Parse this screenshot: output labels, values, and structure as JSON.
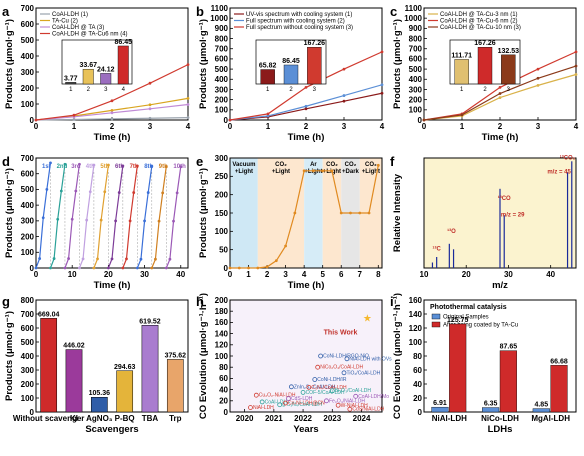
{
  "panels": {
    "a": "a",
    "b": "b",
    "c": "c",
    "d": "d",
    "e": "e",
    "f": "f",
    "g": "g",
    "h": "h",
    "i": "i"
  },
  "chart_data": [
    {
      "id": "a",
      "type": "line",
      "xlabel": "Time (h)",
      "ylabel": "Products (μmol·g⁻¹)",
      "xlim": [
        0,
        4
      ],
      "ylim": [
        0,
        700
      ],
      "xticks": [
        0,
        1,
        2,
        3,
        4
      ],
      "yticks": [
        0,
        100,
        200,
        300,
        400,
        500,
        600,
        700
      ],
      "legend_position": "top-left",
      "series": [
        {
          "name": "CoAl-LDH (1)",
          "color": "#9aa3ad",
          "x": [
            0,
            1,
            2,
            3,
            4
          ],
          "y": [
            0,
            3,
            7,
            11,
            15
          ]
        },
        {
          "name": "TA-Cu (2)",
          "color": "#d9a520",
          "x": [
            0,
            1,
            2,
            3,
            4
          ],
          "y": [
            0,
            25,
            60,
            95,
            135
          ]
        },
        {
          "name": "CoAl-LDH @ TA (3)",
          "color": "#c08bd6",
          "x": [
            0,
            1,
            2,
            3,
            4
          ],
          "y": [
            0,
            20,
            45,
            70,
            97
          ]
        },
        {
          "name": "CoAl-LDH @ TA-Cu6 nm (4)",
          "color": "#d03a2f",
          "x": [
            0,
            1,
            2,
            3,
            4
          ],
          "y": [
            0,
            30,
            120,
            230,
            346
          ]
        }
      ],
      "inset": {
        "type": "bar",
        "categories": [
          "1",
          "2",
          "3",
          "4"
        ],
        "values": [
          3.77,
          33.67,
          24.12,
          86.45
        ],
        "labels": [
          "3.77",
          "33.67",
          "24.12",
          "86.45"
        ],
        "colors": [
          "#4a4a4a",
          "#e8c25a",
          "#9b6dbf",
          "#cf2a2a"
        ],
        "ylim": [
          0,
          100
        ]
      }
    },
    {
      "id": "b",
      "type": "line",
      "xlabel": "Time (h)",
      "ylabel": "Products (μmol·g⁻¹)",
      "xlim": [
        0,
        4
      ],
      "ylim": [
        0,
        1100
      ],
      "xticks": [
        0,
        1,
        2,
        3,
        4
      ],
      "yticks": [
        0,
        100,
        200,
        300,
        400,
        500,
        600,
        700,
        800,
        900,
        1000,
        1100
      ],
      "legend_position": "top-left",
      "series": [
        {
          "name": "UV-vis spectrum with cooling system (1)",
          "color": "#8b1a1a",
          "x": [
            0,
            1,
            2,
            3,
            4
          ],
          "y": [
            0,
            30,
            110,
            185,
            263
          ]
        },
        {
          "name": "Full spectrum with cooling system (2)",
          "color": "#5b8fd6",
          "x": [
            0,
            1,
            2,
            3,
            4
          ],
          "y": [
            0,
            40,
            135,
            240,
            346
          ]
        },
        {
          "name": "Full spectrum without cooling system (3)",
          "color": "#d03a2f",
          "x": [
            0,
            1,
            2,
            3,
            4
          ],
          "y": [
            0,
            60,
            320,
            500,
            669
          ]
        }
      ],
      "inset": {
        "type": "bar",
        "categories": [
          "1",
          "2",
          "3"
        ],
        "values": [
          65.82,
          86.45,
          167.26
        ],
        "labels": [
          "65.82",
          "86.45",
          "167.26"
        ],
        "colors": [
          "#8b1a1a",
          "#5b8fd6",
          "#d03a2f"
        ],
        "ylim": [
          0,
          200
        ]
      }
    },
    {
      "id": "c",
      "type": "line",
      "xlabel": "Time (h)",
      "ylabel": "Products (μmol·g⁻¹)",
      "xlim": [
        0,
        4
      ],
      "ylim": [
        0,
        1100
      ],
      "xticks": [
        0,
        1,
        2,
        3,
        4
      ],
      "yticks": [
        0,
        100,
        200,
        300,
        400,
        500,
        600,
        700,
        800,
        900,
        1000,
        1100
      ],
      "legend_position": "top-left",
      "series": [
        {
          "name": "CoAl-LDH @ TA-Cu-3 nm (1)",
          "color": "#d9b24a",
          "x": [
            0,
            1,
            2,
            3,
            4
          ],
          "y": [
            0,
            40,
            220,
            340,
            447
          ]
        },
        {
          "name": "CoAl-LDH @ TA-Cu-6 nm (2)",
          "color": "#d03a2f",
          "x": [
            0,
            1,
            2,
            3,
            4
          ],
          "y": [
            0,
            60,
            320,
            500,
            669
          ]
        },
        {
          "name": "CoAl-LDH @ TA-Cu-10 nm (3)",
          "color": "#8b3a1a",
          "x": [
            0,
            1,
            2,
            3,
            4
          ],
          "y": [
            0,
            50,
            260,
            410,
            530
          ]
        }
      ],
      "inset": {
        "type": "bar",
        "categories": [
          "1",
          "2",
          "3"
        ],
        "values": [
          111.71,
          167.26,
          132.53
        ],
        "labels": [
          "111.71",
          "167.26",
          "132.53"
        ],
        "colors": [
          "#e0c070",
          "#cf2a2a",
          "#8b3a1a"
        ],
        "ylim": [
          0,
          200
        ]
      }
    },
    {
      "id": "d",
      "type": "line",
      "xlabel": "Time (h)",
      "ylabel": "Products (μmol·g⁻¹)",
      "xlim": [
        0,
        42
      ],
      "ylim": [
        0,
        700
      ],
      "xticks": [
        0,
        10,
        20,
        30,
        40
      ],
      "yticks": [
        0,
        100,
        200,
        300,
        400,
        500,
        600,
        700
      ],
      "cycle_labels": [
        {
          "text": "1st",
          "color": "#3a6fd8"
        },
        {
          "text": "2nd",
          "color": "#2aa198"
        },
        {
          "text": "3rd",
          "color": "#9b59b6"
        },
        {
          "text": "4th",
          "color": "#c0a0e0"
        },
        {
          "text": "5th",
          "color": "#e0a030"
        },
        {
          "text": "6th",
          "color": "#7d3c98"
        },
        {
          "text": "7th",
          "color": "#d03a2f"
        },
        {
          "text": "8th",
          "color": "#3a6fd8"
        },
        {
          "text": "9th",
          "color": "#d08020"
        },
        {
          "text": "10th",
          "color": "#9b59b6"
        }
      ],
      "cycles": [
        {
          "x": [
            0,
            1,
            2,
            3,
            4
          ],
          "y": [
            0,
            60,
            320,
            500,
            669
          ]
        },
        {
          "x": [
            4,
            5,
            6,
            7,
            8
          ],
          "y": [
            0,
            60,
            310,
            490,
            660
          ]
        },
        {
          "x": [
            8,
            9,
            10,
            11,
            12
          ],
          "y": [
            0,
            60,
            310,
            490,
            660
          ]
        },
        {
          "x": [
            12,
            13,
            14,
            15,
            16
          ],
          "y": [
            0,
            58,
            305,
            485,
            655
          ]
        },
        {
          "x": [
            16,
            17,
            18,
            19,
            20
          ],
          "y": [
            0,
            58,
            305,
            485,
            655
          ]
        },
        {
          "x": [
            20,
            21,
            22,
            23,
            24
          ],
          "y": [
            0,
            58,
            300,
            480,
            650
          ]
        },
        {
          "x": [
            24,
            25,
            26,
            27,
            28
          ],
          "y": [
            0,
            58,
            300,
            480,
            650
          ]
        },
        {
          "x": [
            28,
            29,
            30,
            31,
            32
          ],
          "y": [
            0,
            56,
            300,
            480,
            648
          ]
        },
        {
          "x": [
            32,
            33,
            34,
            35,
            36
          ],
          "y": [
            0,
            56,
            298,
            478,
            645
          ]
        },
        {
          "x": [
            36,
            37,
            38,
            39,
            40
          ],
          "y": [
            0,
            56,
            298,
            478,
            645
          ]
        }
      ]
    },
    {
      "id": "e",
      "type": "line",
      "xlabel": "Time (h)",
      "ylabel": "Products (μmol·g⁻¹)",
      "xlim": [
        0,
        8.2
      ],
      "ylim": [
        0,
        300
      ],
      "xticks": [
        0,
        1,
        2,
        3,
        4,
        5,
        6,
        7,
        8
      ],
      "yticks": [
        0,
        50,
        100,
        150,
        200,
        250,
        300
      ],
      "bands": [
        {
          "from": 0,
          "to": 1.5,
          "color": "#cfe8f5",
          "label": "Vacuum\n+Light"
        },
        {
          "from": 1.5,
          "to": 4,
          "color": "#fde7cf",
          "label": "CO₂\n+Light"
        },
        {
          "from": 4,
          "to": 5,
          "color": "#d6ecf7",
          "label": "Ar\n+Light"
        },
        {
          "from": 5,
          "to": 6,
          "color": "#fde7cf",
          "label": "CO₂\n+Light"
        },
        {
          "from": 6,
          "to": 7,
          "color": "#e6e6e6",
          "label": "CO₂\n+Dark"
        },
        {
          "from": 7,
          "to": 8.2,
          "color": "#fde7cf",
          "label": "CO₂\n+Light"
        }
      ],
      "series": [
        {
          "name": "",
          "color": "#e08a20",
          "x": [
            0,
            0.5,
            1,
            1.5,
            2,
            2.5,
            3,
            3.5,
            4,
            4.5,
            5,
            5.5,
            6,
            6.5,
            7,
            7.5,
            8
          ],
          "y": [
            0,
            0,
            0,
            0,
            3,
            20,
            60,
            150,
            265,
            265,
            265,
            265,
            150,
            150,
            150,
            150,
            280
          ]
        }
      ]
    },
    {
      "id": "f",
      "type": "bar",
      "xlabel": "m/z",
      "ylabel": "Relative Intensity",
      "xlim": [
        10,
        46
      ],
      "ylim": [
        0,
        1
      ],
      "xticks": [
        10,
        20,
        30,
        40
      ],
      "peaks": [
        {
          "x": 12,
          "h": 0.05
        },
        {
          "x": 13,
          "h": 0.1
        },
        {
          "x": 16,
          "h": 0.22
        },
        {
          "x": 17,
          "h": 0.17
        },
        {
          "x": 28,
          "h": 0.72
        },
        {
          "x": 29,
          "h": 0.48
        },
        {
          "x": 44,
          "h": 0.87
        },
        {
          "x": 45,
          "h": 0.97
        }
      ],
      "annotations": [
        {
          "text": "¹³C",
          "x": 13,
          "h": 0.14
        },
        {
          "text": "¹³O",
          "x": 16.5,
          "h": 0.3
        },
        {
          "text": "¹³CO",
          "x": 29,
          "h": 0.6
        },
        {
          "text": "m/z = 29",
          "x": 31,
          "h": 0.45
        },
        {
          "text": "¹³CO₂",
          "x": 44,
          "h": 0.97
        },
        {
          "text": "m/z = 45",
          "x": 42,
          "h": 0.84
        }
      ]
    },
    {
      "id": "g",
      "type": "bar",
      "xlabel": "Scavengers",
      "ylabel": "Products (μmol·g⁻¹)",
      "ylim": [
        0,
        800
      ],
      "yticks": [
        0,
        100,
        200,
        300,
        400,
        500,
        600,
        700,
        800
      ],
      "categories": [
        "Without scavenger",
        "KI",
        "AgNO₃",
        "P-BQ",
        "TBA",
        "Trp"
      ],
      "values": [
        669.04,
        446.02,
        105.36,
        294.63,
        619.52,
        375.62
      ],
      "labels": [
        "669.04",
        "446.02",
        "105.36",
        "294.63",
        "619.52",
        "375.62"
      ],
      "colors": [
        "#cf2a2a",
        "#9b3a9b",
        "#2f5da8",
        "#e4b43a",
        "#a97ccf",
        "#e8a56a"
      ],
      "patterns": [
        "solid",
        "hatch",
        "solid",
        "hatch",
        "solid",
        "hatch"
      ]
    },
    {
      "id": "h",
      "type": "scatter",
      "xlabel": "Years",
      "ylabel": "CO Evolution (μmol·g⁻¹·h⁻¹)",
      "xlim": [
        2019.5,
        2024.7
      ],
      "ylim": [
        0,
        200
      ],
      "xticks": [
        2020,
        2021,
        2022,
        2023,
        2024
      ],
      "yticks": [
        0,
        20,
        40,
        60,
        80,
        100,
        120,
        140,
        160,
        180,
        200
      ],
      "highlight": {
        "text": "This Work",
        "x": 2024.2,
        "y": 167
      },
      "points": [
        {
          "x": 2020.2,
          "y": 8,
          "label": "NiAl-LDH",
          "color": "#d03a2f"
        },
        {
          "x": 2020.4,
          "y": 30,
          "label": "Cu₂O₂-NiAl-LDH",
          "color": "#d03a2f"
        },
        {
          "x": 2020.6,
          "y": 18,
          "label": "CoAl-LDH",
          "color": "#2aa198"
        },
        {
          "x": 2021.2,
          "y": 13,
          "label": "g-C₃N₄/CoAl-LDH",
          "color": "#2aa198"
        },
        {
          "x": 2021.4,
          "y": 16,
          "label": "Co-Ni-LDH@CN",
          "color": "#d03a2f"
        },
        {
          "x": 2021.5,
          "y": 24,
          "label": "CdS-LDH",
          "color": "#9b59b6"
        },
        {
          "x": 2021.6,
          "y": 45,
          "label": "ZnIn₂S₄-CoAl-LDH",
          "color": "#2f5da8"
        },
        {
          "x": 2022.0,
          "y": 35,
          "label": "COF-5/CoAl-LDH",
          "color": "#2aa198"
        },
        {
          "x": 2022.2,
          "y": 44,
          "label": "C₃N₄/CoAl-LDH",
          "color": "#d03a2f"
        },
        {
          "x": 2022.4,
          "y": 58,
          "label": "CoNi-LDH/IR",
          "color": "#2f5da8"
        },
        {
          "x": 2022.5,
          "y": 80,
          "label": "NiCo₂O₄/CoAl-LDH",
          "color": "#d03a2f"
        },
        {
          "x": 2022.6,
          "y": 100,
          "label": "CoNi-LDH/RGO-NiO",
          "color": "#2f5da8"
        },
        {
          "x": 2022.8,
          "y": 20,
          "label": "Fe₃O₄/NiAl-LDH",
          "color": "#9b59b6"
        },
        {
          "x": 2023.0,
          "y": 38,
          "label": "Bi₂O₃/CoAl-LDH",
          "color": "#2aa198"
        },
        {
          "x": 2023.2,
          "y": 12,
          "label": "W-NiAl-LDH",
          "color": "#d03a2f"
        },
        {
          "x": 2023.4,
          "y": 70,
          "label": "TiO₂/CoAl-LDH",
          "color": "#2f5da8"
        },
        {
          "x": 2023.5,
          "y": 95,
          "label": "NiAl-LDH with OVs",
          "color": "#2f5da8"
        },
        {
          "x": 2023.6,
          "y": 5,
          "label": "CdS/NiAl-LDH",
          "color": "#d03a2f"
        },
        {
          "x": 2023.8,
          "y": 28,
          "label": "CoAl-LDH/Mo",
          "color": "#9b59b6"
        }
      ]
    },
    {
      "id": "i",
      "type": "bar",
      "title": "Photothermal catalysis",
      "xlabel": "LDHs",
      "ylabel": "CO Evolution (μmol·g⁻¹·h⁻¹)",
      "ylim": [
        0,
        160
      ],
      "yticks": [
        0,
        20,
        40,
        60,
        80,
        100,
        120,
        140,
        160
      ],
      "categories": [
        "NiAl-LDH",
        "NiCo-LDH",
        "MgAl-LDH"
      ],
      "legend_position": "top-right",
      "series": [
        {
          "name": "Original Samples",
          "color": "#5b8fd6",
          "values": [
            6.91,
            6.35,
            4.85
          ],
          "labels": [
            "6.91",
            "6.35",
            "4.85"
          ]
        },
        {
          "name": "After being coated by TA-Cu",
          "color": "#cf2a2a",
          "values": [
            125.75,
            87.65,
            66.68
          ],
          "labels": [
            "125.75",
            "87.65",
            "66.68"
          ]
        }
      ]
    }
  ]
}
